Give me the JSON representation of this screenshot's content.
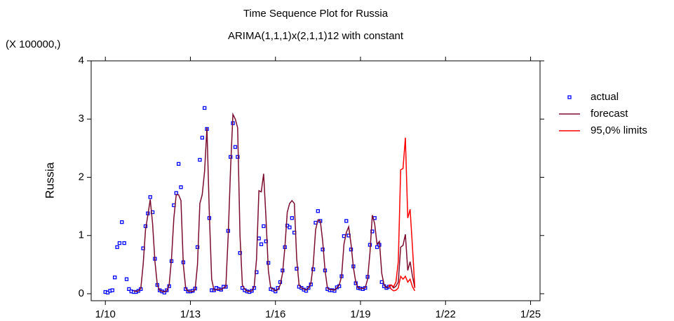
{
  "chart_data": {
    "type": "line",
    "title": "Time Sequence Plot for Russia",
    "subtitle": "ARIMA(1,1,1)x(2,1,1)12 with constant",
    "y_label": "Russia",
    "y_scale_note": "(X 100000,)",
    "xlim": [
      "7/09",
      "5/25"
    ],
    "xticks": [
      "1/10",
      "1/13",
      "1/16",
      "1/19",
      "1/22",
      "1/25"
    ],
    "ylim": [
      -0.12,
      4
    ],
    "yticks": [
      0,
      1,
      2,
      3,
      4
    ],
    "series": [
      {
        "name": "actual",
        "style": "markers",
        "color": "#0000ff",
        "x": [
          "1/10",
          "2/10",
          "3/10",
          "4/10",
          "5/10",
          "6/10",
          "7/10",
          "8/10",
          "9/10",
          "10/10",
          "11/10",
          "12/10",
          "1/11",
          "2/11",
          "3/11",
          "4/11",
          "5/11",
          "6/11",
          "7/11",
          "8/11",
          "9/11",
          "10/11",
          "11/11",
          "12/11",
          "1/12",
          "2/12",
          "3/12",
          "4/12",
          "5/12",
          "6/12",
          "7/12",
          "8/12",
          "9/12",
          "10/12",
          "11/12",
          "12/12",
          "1/13",
          "2/13",
          "3/13",
          "4/13",
          "5/13",
          "6/13",
          "7/13",
          "8/13",
          "9/13",
          "10/13",
          "11/13",
          "12/13",
          "1/14",
          "2/14",
          "3/14",
          "4/14",
          "5/14",
          "6/14",
          "7/14",
          "8/14",
          "9/14",
          "10/14",
          "11/14",
          "12/14",
          "1/15",
          "2/15",
          "3/15",
          "4/15",
          "5/15",
          "6/15",
          "7/15",
          "8/15",
          "9/15",
          "10/15",
          "11/15",
          "12/15",
          "1/16",
          "2/16",
          "3/16",
          "4/16",
          "5/16",
          "6/16",
          "7/16",
          "8/16",
          "9/16",
          "10/16",
          "11/16",
          "12/16",
          "1/17",
          "2/17",
          "3/17",
          "4/17",
          "5/17",
          "6/17",
          "7/17",
          "8/17",
          "9/17",
          "10/17",
          "11/17",
          "12/17",
          "1/18",
          "2/18",
          "3/18",
          "4/18",
          "5/18",
          "6/18",
          "7/18",
          "8/18",
          "9/18",
          "10/18",
          "11/18",
          "12/18",
          "1/19",
          "2/19",
          "3/19",
          "4/19",
          "5/19",
          "6/19",
          "7/19",
          "8/19",
          "9/19",
          "10/19",
          "11/19",
          "12/19",
          "1/20"
        ],
        "values": [
          0.03,
          0.02,
          0.05,
          0.06,
          0.28,
          0.8,
          0.87,
          1.23,
          0.87,
          0.25,
          0.08,
          0.04,
          0.03,
          0.03,
          0.05,
          0.08,
          0.78,
          1.16,
          1.38,
          1.66,
          1.4,
          0.6,
          0.15,
          0.06,
          0.04,
          0.02,
          0.06,
          0.13,
          0.56,
          1.52,
          1.73,
          2.23,
          1.83,
          0.54,
          0.08,
          0.04,
          0.04,
          0.05,
          0.09,
          0.8,
          2.3,
          2.68,
          3.19,
          2.83,
          1.3,
          0.06,
          0.06,
          0.1,
          0.08,
          0.07,
          0.12,
          0.12,
          1.08,
          2.35,
          2.93,
          2.52,
          2.35,
          0.7,
          0.1,
          0.06,
          0.04,
          0.03,
          0.05,
          0.1,
          0.37,
          0.95,
          0.85,
          1.16,
          0.9,
          0.53,
          0.08,
          0.07,
          0.04,
          0.1,
          0.2,
          0.4,
          0.8,
          1.17,
          1.14,
          1.3,
          1.05,
          0.43,
          0.12,
          0.1,
          0.07,
          0.05,
          0.1,
          0.16,
          0.42,
          1.22,
          1.42,
          1.25,
          0.76,
          0.4,
          0.08,
          0.06,
          0.06,
          0.05,
          0.11,
          0.13,
          0.3,
          0.99,
          1.25,
          1.0,
          0.76,
          0.47,
          0.18,
          0.1,
          0.09,
          0.08,
          0.1,
          0.29,
          0.84,
          1.07,
          1.3,
          0.8,
          0.84,
          0.2,
          0.13,
          0.1,
          0.12
        ]
      },
      {
        "name": "forecast",
        "style": "line",
        "color": "#7b0c2e",
        "x": [
          "1/11",
          "2/11",
          "3/11",
          "4/11",
          "5/11",
          "6/11",
          "7/11",
          "8/11",
          "9/11",
          "10/11",
          "11/11",
          "12/11",
          "1/12",
          "2/12",
          "3/12",
          "4/12",
          "5/12",
          "6/12",
          "7/12",
          "8/12",
          "9/12",
          "10/12",
          "11/12",
          "12/12",
          "1/13",
          "2/13",
          "3/13",
          "4/13",
          "5/13",
          "6/13",
          "7/13",
          "8/13",
          "9/13",
          "10/13",
          "11/13",
          "12/13",
          "1/14",
          "2/14",
          "3/14",
          "4/14",
          "5/14",
          "6/14",
          "7/14",
          "8/14",
          "9/14",
          "10/14",
          "11/14",
          "12/14",
          "1/15",
          "2/15",
          "3/15",
          "4/15",
          "5/15",
          "6/15",
          "7/15",
          "8/15",
          "9/15",
          "10/15",
          "11/15",
          "12/15",
          "1/16",
          "2/16",
          "3/16",
          "4/16",
          "5/16",
          "6/16",
          "7/16",
          "8/16",
          "9/16",
          "10/16",
          "11/16",
          "12/16",
          "1/17",
          "2/17",
          "3/17",
          "4/17",
          "5/17",
          "6/17",
          "7/17",
          "8/17",
          "9/17",
          "10/17",
          "11/17",
          "12/17",
          "1/18",
          "2/18",
          "3/18",
          "4/18",
          "5/18",
          "6/18",
          "7/18",
          "8/18",
          "9/18",
          "10/18",
          "11/18",
          "12/18",
          "1/19",
          "2/19",
          "3/19",
          "4/19",
          "5/19",
          "6/19",
          "7/19",
          "8/19",
          "9/19",
          "10/19",
          "11/19",
          "12/19",
          "1/20",
          "2/20",
          "3/20",
          "4/20",
          "5/20",
          "6/20",
          "7/20",
          "8/20",
          "9/20",
          "10/20",
          "11/20",
          "12/20"
        ],
        "values": [
          0.05,
          0.04,
          0.05,
          0.09,
          0.5,
          1.1,
          1.35,
          1.62,
          1.2,
          0.55,
          0.15,
          0.06,
          0.04,
          0.03,
          0.05,
          0.15,
          0.6,
          1.3,
          1.7,
          1.7,
          1.6,
          0.5,
          0.1,
          0.04,
          0.04,
          0.04,
          0.07,
          0.5,
          1.55,
          1.7,
          2.1,
          2.85,
          1.4,
          0.25,
          0.06,
          0.07,
          0.08,
          0.07,
          0.1,
          0.12,
          1.0,
          2.15,
          3.08,
          3.0,
          2.85,
          1.0,
          0.15,
          0.08,
          0.04,
          0.04,
          0.05,
          0.12,
          0.6,
          1.77,
          1.75,
          2.06,
          1.3,
          0.4,
          0.1,
          0.08,
          0.05,
          0.07,
          0.15,
          0.35,
          0.8,
          1.4,
          1.55,
          1.6,
          1.55,
          0.6,
          0.15,
          0.1,
          0.08,
          0.06,
          0.1,
          0.18,
          0.5,
          1.1,
          1.27,
          1.25,
          0.9,
          0.4,
          0.1,
          0.07,
          0.07,
          0.06,
          0.1,
          0.15,
          0.3,
          0.85,
          1.05,
          1.15,
          0.85,
          0.45,
          0.2,
          0.1,
          0.09,
          0.09,
          0.1,
          0.25,
          0.7,
          1.35,
          1.2,
          0.85,
          0.9,
          0.35,
          0.15,
          0.1,
          0.12,
          0.15,
          0.1,
          0.13,
          0.2,
          0.8,
          0.83,
          1.02,
          0.4,
          0.55,
          0.3,
          0.1
        ]
      },
      {
        "name": "95,0% limits",
        "style": "band",
        "color": "#ff0000",
        "x": [
          "1/20",
          "2/20",
          "3/20",
          "4/20",
          "5/20",
          "6/20",
          "7/20",
          "8/20",
          "9/20",
          "10/20",
          "11/20",
          "12/20"
        ],
        "upper": [
          0.15,
          0.15,
          0.12,
          0.2,
          0.55,
          2.13,
          2.15,
          2.68,
          1.3,
          1.45,
          0.8,
          0.1
        ],
        "lower": [
          0.15,
          0.08,
          0.05,
          0.06,
          0.1,
          0.3,
          0.25,
          0.3,
          0.2,
          0.25,
          0.12,
          0.05
        ]
      }
    ]
  }
}
